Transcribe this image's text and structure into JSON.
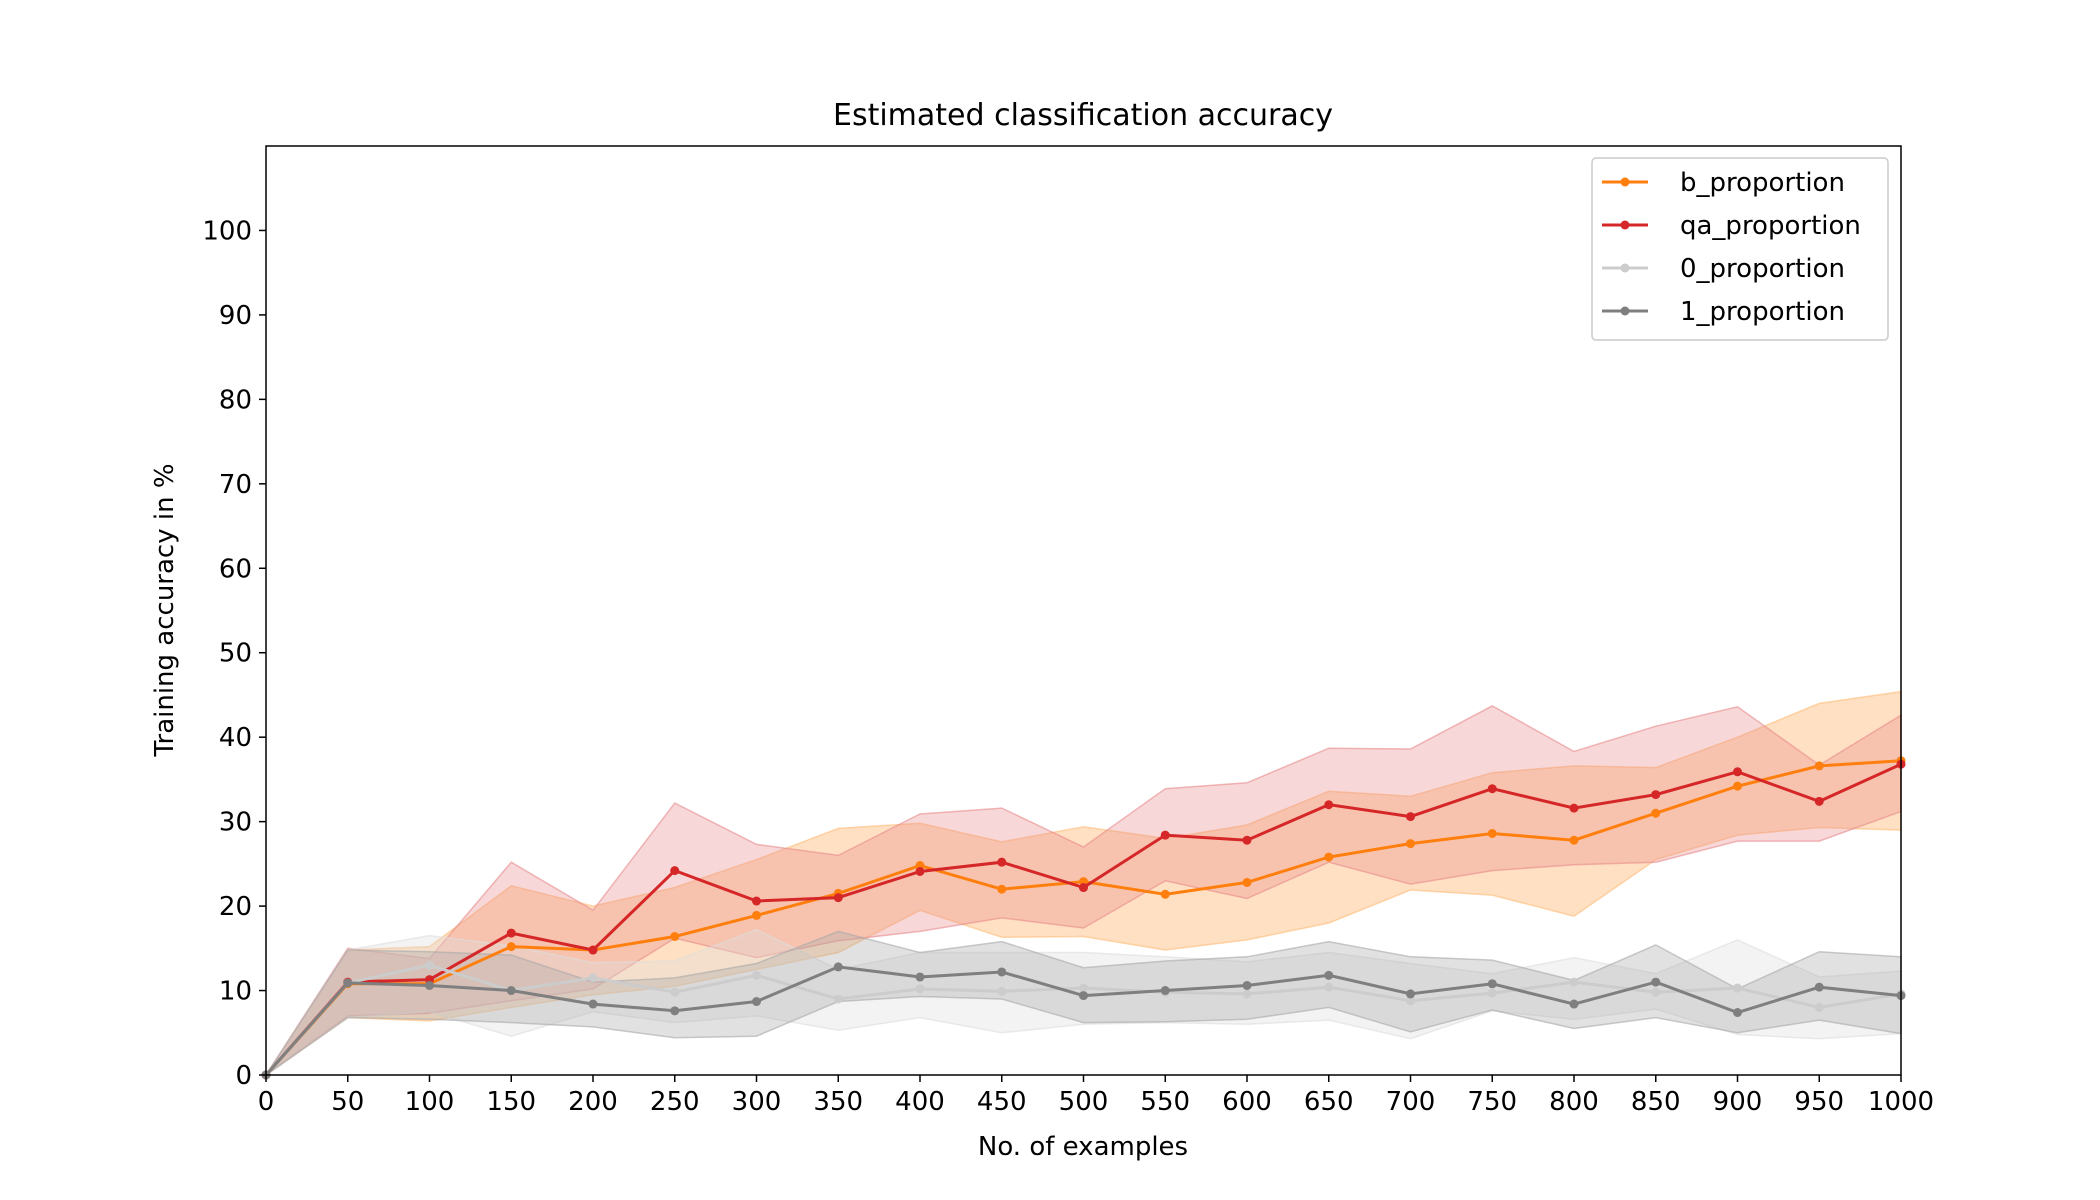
{
  "chart_data": {
    "type": "line",
    "title": "Estimated classification accuracy",
    "xlabel": "No. of examples",
    "ylabel": "Training accuracy in %",
    "xlim": [
      0,
      1000
    ],
    "ylim": [
      0,
      110
    ],
    "xticks": [
      0,
      50,
      100,
      150,
      200,
      250,
      300,
      350,
      400,
      450,
      500,
      550,
      600,
      650,
      700,
      750,
      800,
      850,
      900,
      950,
      1000
    ],
    "yticks": [
      0,
      10,
      20,
      30,
      40,
      50,
      60,
      70,
      80,
      90,
      100
    ],
    "grid": false,
    "legend_position": "top-right",
    "x": [
      0,
      50,
      100,
      150,
      200,
      250,
      300,
      350,
      400,
      450,
      500,
      550,
      600,
      650,
      700,
      750,
      800,
      850,
      900,
      950,
      1000
    ],
    "series": [
      {
        "name": "b_proportion",
        "color": "#ff7f0e",
        "band_color": "#ffbb78",
        "band_opacity": 0.45,
        "values": [
          0,
          10.8,
          10.8,
          15.2,
          14.8,
          16.4,
          18.9,
          21.5,
          24.8,
          22.0,
          22.9,
          21.4,
          22.8,
          25.8,
          27.4,
          28.6,
          27.8,
          31.0,
          34.2,
          36.6,
          37.2
        ],
        "lower": [
          0,
          6.8,
          6.4,
          8.0,
          9.5,
          10.5,
          12.5,
          14.5,
          19.5,
          16.3,
          16.4,
          14.8,
          16.0,
          18.0,
          21.9,
          21.3,
          18.8,
          25.5,
          28.4,
          29.3,
          29.0
        ],
        "upper": [
          0,
          14.8,
          15.2,
          22.4,
          20.0,
          22.2,
          25.5,
          29.2,
          29.8,
          27.6,
          29.4,
          28.0,
          29.6,
          33.6,
          33.0,
          35.8,
          36.6,
          36.4,
          40.0,
          44.0,
          45.4
        ]
      },
      {
        "name": "qa_proportion",
        "color": "#d62728",
        "band_color": "#e88b8c",
        "band_opacity": 0.35,
        "values": [
          0,
          11.0,
          11.3,
          16.8,
          14.8,
          24.2,
          20.6,
          21.0,
          24.1,
          25.2,
          22.2,
          28.4,
          27.8,
          32.0,
          30.6,
          33.9,
          31.6,
          33.2,
          35.9,
          32.4,
          36.8
        ],
        "lower": [
          0,
          7.0,
          7.3,
          8.8,
          10.2,
          16.2,
          13.9,
          15.9,
          17.0,
          18.6,
          17.4,
          23.0,
          20.9,
          25.2,
          22.6,
          24.2,
          24.9,
          25.2,
          27.7,
          27.7,
          31.2
        ],
        "upper": [
          0,
          15.0,
          13.8,
          25.2,
          19.5,
          32.2,
          27.3,
          26.0,
          30.9,
          31.6,
          27.0,
          33.9,
          34.6,
          38.7,
          38.6,
          43.7,
          38.3,
          41.3,
          43.6,
          36.7,
          42.6
        ]
      },
      {
        "name": "0_proportion",
        "color": "#cccccc",
        "band_color": "#dddddd",
        "band_opacity": 0.35,
        "values": [
          0,
          10.9,
          13.0,
          10.0,
          11.5,
          9.8,
          11.8,
          9.0,
          10.2,
          9.9,
          10.3,
          9.8,
          9.6,
          10.4,
          8.8,
          9.7,
          11.0,
          9.8,
          10.3,
          8.0,
          9.6
        ],
        "lower": [
          0,
          6.8,
          7.5,
          4.6,
          7.5,
          6.2,
          7.0,
          5.3,
          6.8,
          5.0,
          6.0,
          6.2,
          6.0,
          6.5,
          4.3,
          7.6,
          6.6,
          7.8,
          4.8,
          4.3,
          4.9
        ],
        "upper": [
          0,
          14.8,
          16.5,
          15.3,
          13.3,
          13.5,
          17.2,
          12.5,
          14.5,
          14.5,
          14.5,
          14.0,
          13.4,
          14.5,
          13.2,
          12.0,
          13.9,
          12.0,
          16.0,
          11.6,
          12.3
        ]
      },
      {
        "name": "1_proportion",
        "color": "#7f7f7f",
        "band_color": "#a8a8a8",
        "band_opacity": 0.35,
        "values": [
          0,
          10.9,
          10.6,
          10.0,
          8.4,
          7.6,
          8.7,
          12.8,
          11.6,
          12.2,
          9.4,
          10.0,
          10.6,
          11.8,
          9.6,
          10.8,
          8.4,
          11.0,
          7.4,
          10.4,
          9.4
        ],
        "lower": [
          0,
          6.8,
          6.6,
          6.2,
          5.7,
          4.4,
          4.6,
          8.7,
          9.3,
          9.0,
          6.2,
          6.3,
          6.6,
          8.0,
          5.1,
          7.7,
          5.5,
          6.8,
          5.0,
          6.5,
          4.9
        ],
        "upper": [
          0,
          14.8,
          14.6,
          14.2,
          11.0,
          11.5,
          13.2,
          17.0,
          14.5,
          15.8,
          12.7,
          13.5,
          14.0,
          15.8,
          14.0,
          13.6,
          11.2,
          15.4,
          10.2,
          14.6,
          14.0
        ]
      }
    ]
  }
}
